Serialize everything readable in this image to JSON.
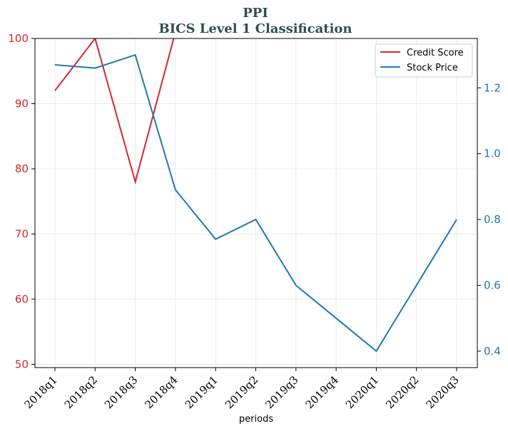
{
  "chart_data": {
    "type": "line",
    "title": "PPI",
    "subtitle": "BICS Level 1 Classification",
    "xlabel": "periods",
    "categories": [
      "2018q1",
      "2018q2",
      "2018q3",
      "2018q4",
      "2019q1",
      "2019q2",
      "2019q3",
      "2019q4",
      "2020q1",
      "2020q2",
      "2020q3"
    ],
    "left_axis": {
      "ylim": [
        49.5,
        100
      ],
      "ticks": [
        50,
        60,
        70,
        80,
        90,
        100
      ],
      "color": "#d62728"
    },
    "right_axis": {
      "ylim": [
        0.35,
        1.35
      ],
      "ticks": [
        0.4,
        0.6,
        0.8,
        1.0,
        1.2
      ],
      "color": "#1f77b4"
    },
    "series": [
      {
        "name": "Credit Score",
        "axis": "left",
        "color": "#d62728",
        "values": [
          92,
          100,
          78,
          101,
          null,
          null,
          null,
          null,
          null,
          null,
          null
        ]
      },
      {
        "name": "Stock Price",
        "axis": "right",
        "color": "#1f77b4",
        "values": [
          1.27,
          1.26,
          1.3,
          0.89,
          0.74,
          0.8,
          0.6,
          0.5,
          0.4,
          0.6,
          0.8
        ]
      }
    ],
    "grid": true,
    "legend": "top-right"
  }
}
